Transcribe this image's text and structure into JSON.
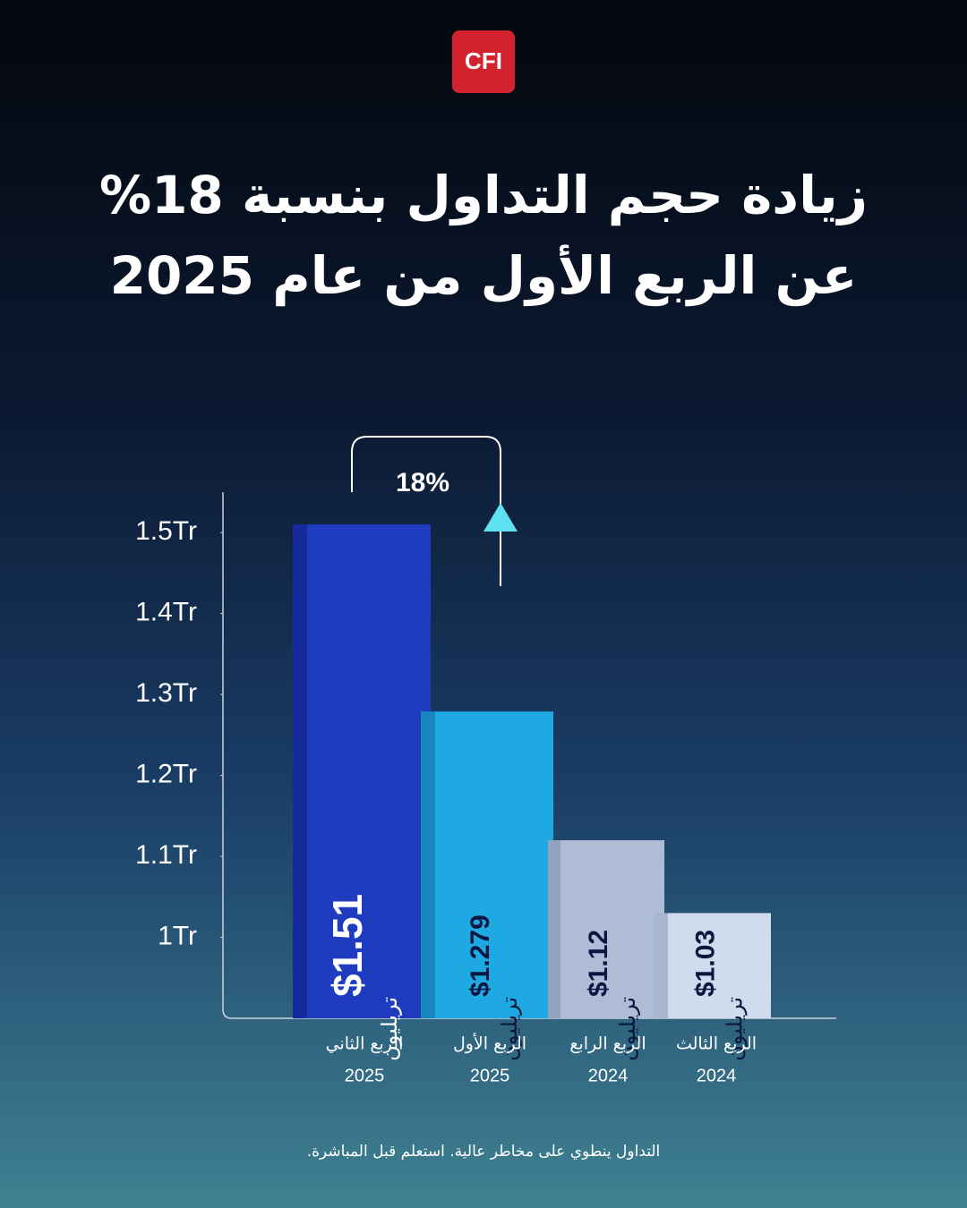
{
  "logo": "CFI",
  "chart_data": {
    "type": "bar",
    "title": [
      "زيادة حجم التداول بنسبة  18%",
      "عن الربع الأول من عام 2025"
    ],
    "categories": [
      "الربع الثاني",
      "الربع الأول",
      "الربع الرابع",
      "الربع الثالث"
    ],
    "years": [
      "2025",
      "2025",
      "2024",
      "2024"
    ],
    "values": [
      1.51,
      1.279,
      1.12,
      1.03
    ],
    "value_labels": [
      "$1.51",
      "$1.279",
      "$1.12",
      "$1.03"
    ],
    "unit": "تريليون",
    "colors": [
      "#1f3bbf",
      "#1ea9e2",
      "#afbcd6",
      "#d0dbed"
    ],
    "side_colors": [
      "#152a9c",
      "#1688c0",
      "#92a2bf",
      "#a6b6cd"
    ],
    "label_colors": [
      "#ffffff",
      "#0b1740",
      "#0b1740",
      "#0b1740"
    ],
    "ylim": [
      0.9,
      1.55
    ],
    "yticks": [
      {
        "value": 1,
        "label": "1Tr"
      },
      {
        "value": 1.1,
        "label": "1.1Tr"
      },
      {
        "value": 1.2,
        "label": "1.2Tr"
      },
      {
        "value": 1.3,
        "label": "1.3Tr"
      },
      {
        "value": 1.4,
        "label": "1.4Tr"
      },
      {
        "value": 1.5,
        "label": "1.5Tr"
      }
    ],
    "annotation": "18%"
  },
  "footer": "التداول ينطوي على مخاطر عالية. استعلم قبل المباشرة."
}
